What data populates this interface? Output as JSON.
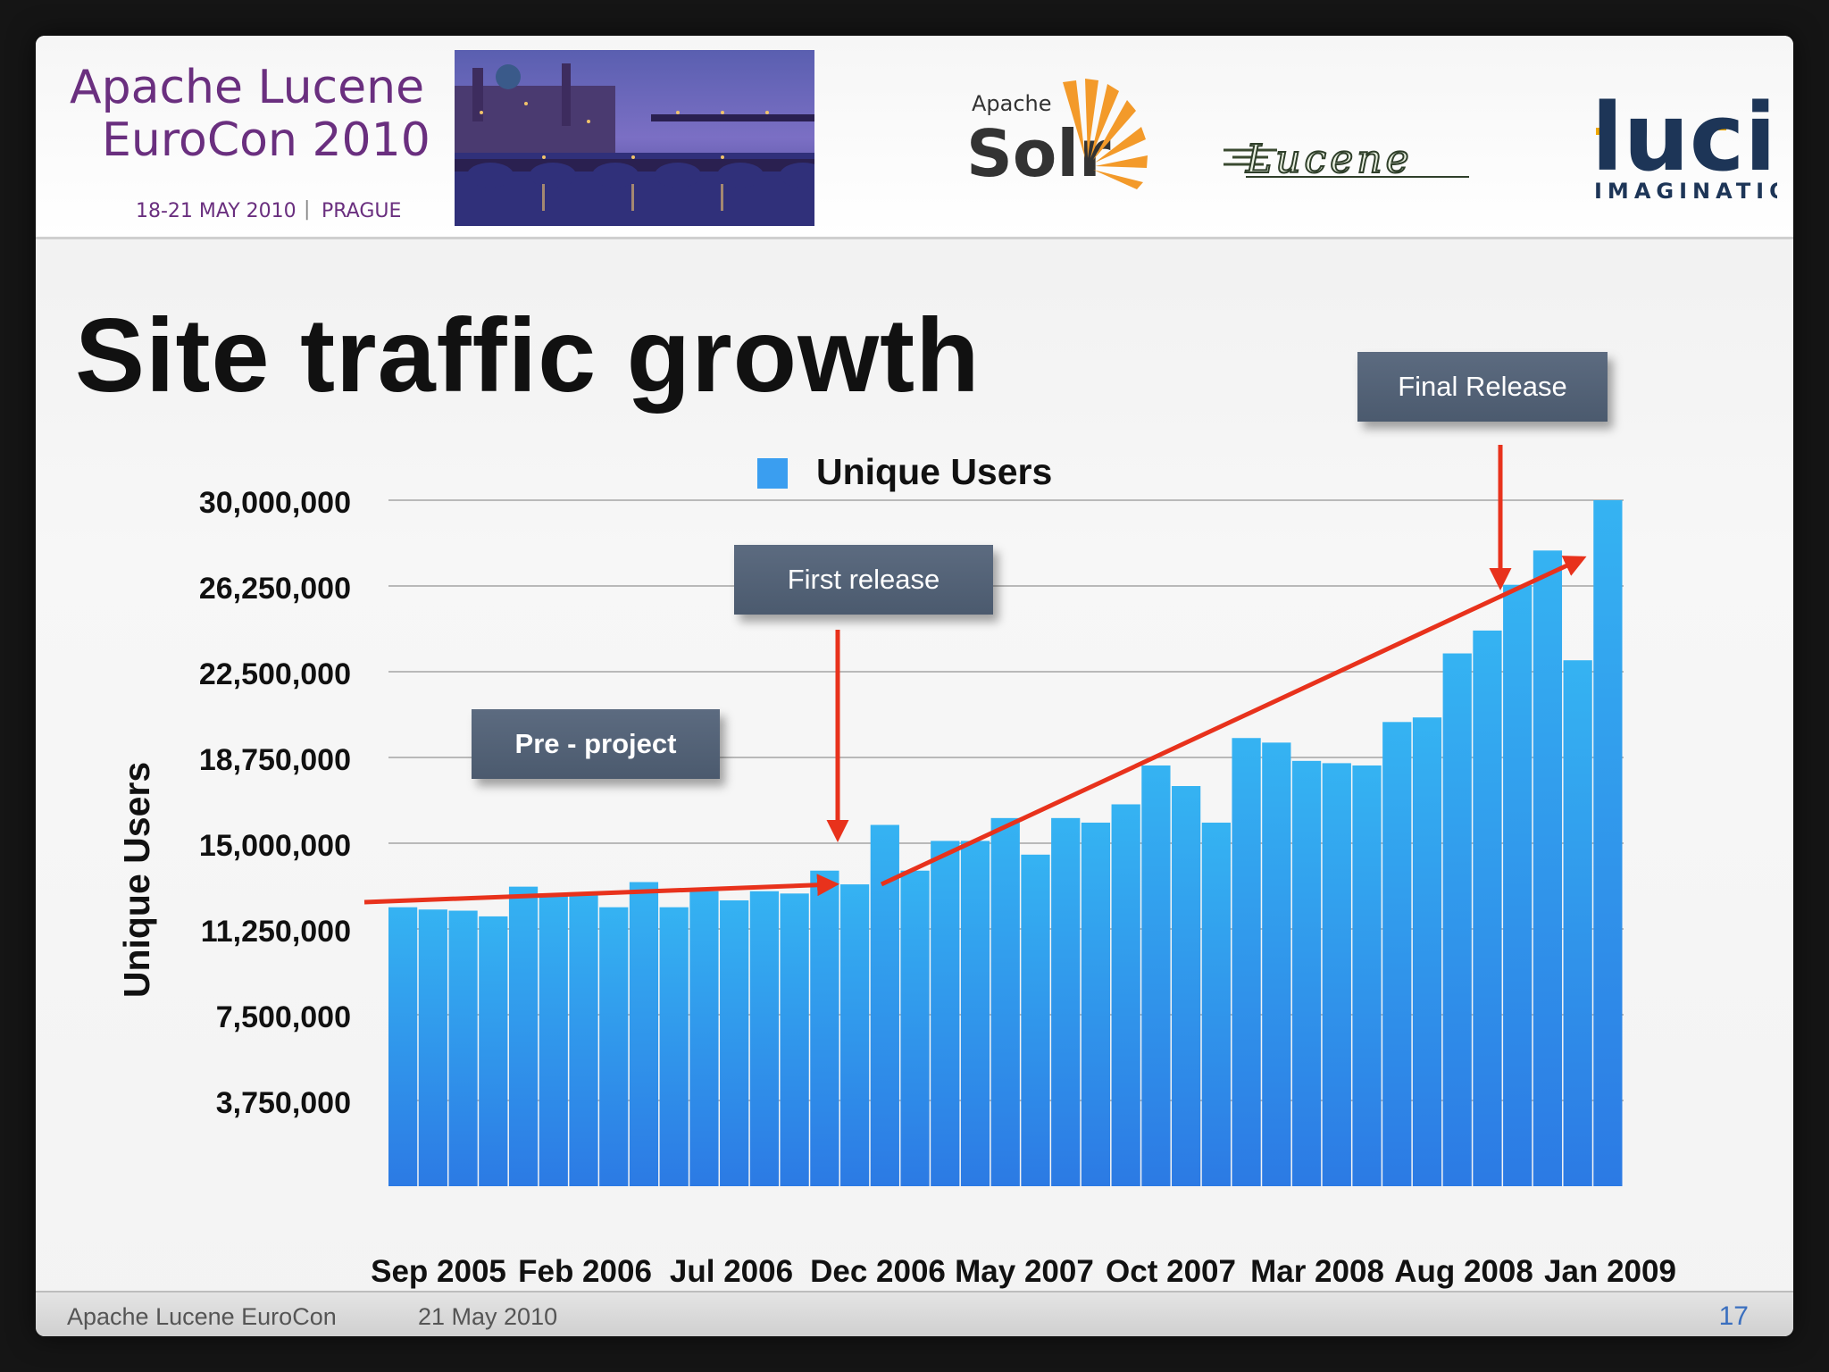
{
  "header": {
    "conference_line1": "Apache Lucene",
    "conference_line2": "EuroCon 2010",
    "date_place": "18-21 MAY 2010",
    "city": "PRAGUE",
    "solr_small": "Apache",
    "solr_big": "Solr",
    "lucene_logo_text": "Lucene",
    "lucid_big": "lucid",
    "lucid_small": "IMAGINATION"
  },
  "slide_title": "Site traffic growth",
  "callouts": {
    "pre_project": "Pre - project",
    "first_release": "First release",
    "final_release": "Final Release"
  },
  "footer": {
    "left": "Apache Lucene EuroCon",
    "date": "21 May 2010",
    "page_number": "17"
  },
  "colors": {
    "bar": "#2f8fe6",
    "arrow": "#e8321c",
    "callout": "#56657a",
    "conference_purple": "#6a2f7f"
  },
  "chart_data": {
    "type": "bar",
    "title": "",
    "legend": [
      "Unique Users"
    ],
    "legend_position": "top-center",
    "ylabel": "Unique Users",
    "xlabel": "",
    "ylim": [
      0,
      30000000
    ],
    "y_ticks": [
      "3,750,000",
      "7,500,000",
      "11,250,000",
      "15,000,000",
      "18,750,000",
      "22,500,000",
      "26,250,000",
      "30,000,000"
    ],
    "y_tick_values": [
      3750000,
      7500000,
      11250000,
      15000000,
      18750000,
      22500000,
      26250000,
      30000000
    ],
    "x_tick_labels": [
      "Sep 2005",
      "Feb 2006",
      "Jul 2006",
      "Dec 2006",
      "May 2007",
      "Oct 2007",
      "Mar 2008",
      "Aug 2008",
      "Jan 2009"
    ],
    "grid": true,
    "series": [
      {
        "name": "Unique Users",
        "values": [
          12200000,
          12100000,
          12050000,
          11800000,
          13100000,
          12800000,
          12800000,
          12200000,
          13300000,
          12200000,
          12900000,
          12500000,
          12900000,
          12800000,
          13800000,
          13200000,
          15800000,
          13800000,
          15100000,
          15100000,
          16100000,
          14500000,
          16100000,
          15900000,
          16700000,
          18400000,
          17500000,
          15900000,
          19600000,
          19400000,
          18600000,
          18500000,
          18400000,
          20300000,
          20500000,
          23300000,
          24300000,
          26300000,
          27800000,
          23000000,
          30000000
        ]
      }
    ]
  }
}
